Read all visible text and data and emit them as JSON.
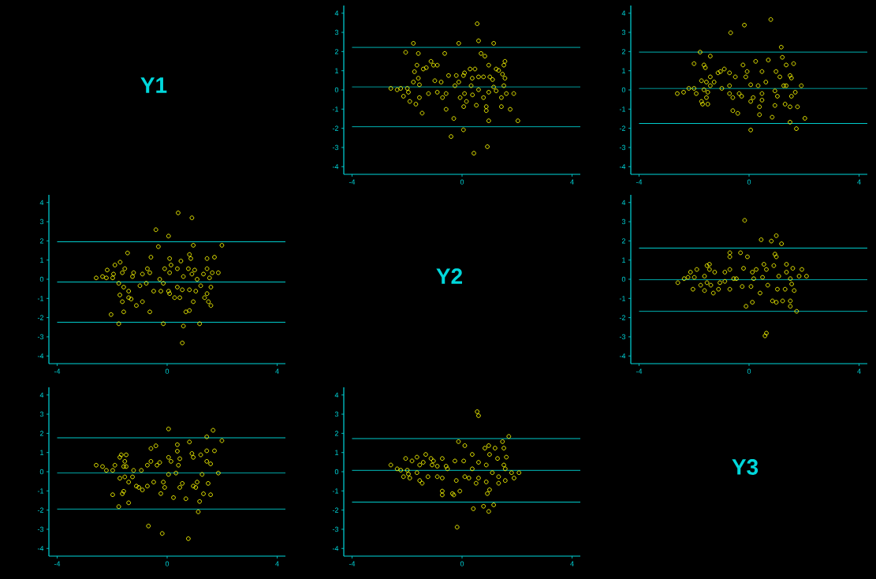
{
  "chart_data": [
    {
      "type": "other",
      "title": "Y1"
    },
    {
      "type": "scatter",
      "color": "#ffff00",
      "marker": "circle",
      "xlim": [
        -4.3,
        4.3
      ],
      "ylim": [
        -4.4,
        4.4
      ],
      "xticks": [
        -4,
        0,
        4
      ],
      "yticks": [
        -4,
        -3,
        -2,
        -1,
        0,
        1,
        2,
        3,
        4
      ],
      "ref_lines": [
        {
          "axis": "y",
          "value": 2.22,
          "color": "#00cccc"
        },
        {
          "axis": "y",
          "value": 0.16,
          "color": "#00cccc"
        },
        {
          "axis": "y",
          "value": -1.92,
          "color": "#00cccc"
        }
      ],
      "x": [
        -2.59,
        -2.36,
        -2.23,
        -1.99,
        -2.13,
        -1.95,
        -1.9,
        -2.05,
        -1.77,
        -1.73,
        -1.64,
        -1.59,
        -1.77,
        -1.59,
        -1.55,
        -1.68,
        -1.55,
        -1.45,
        -1.41,
        -1.3,
        -1.22,
        -1.13,
        -1.04,
        -0.9,
        -0.99,
        -0.76,
        -0.9,
        -0.71,
        -0.63,
        -0.58,
        -0.49,
        -0.58,
        -0.3,
        -0.4,
        -0.26,
        -0.21,
        -0.12,
        -0.12,
        -0.07,
        0.05,
        0.09,
        0.09,
        0.06,
        0.16,
        0.05,
        0.29,
        0.37,
        0.33,
        0.38,
        0.47,
        0.52,
        0.55,
        0.6,
        0.6,
        0.6,
        0.43,
        0.69,
        0.83,
        0.78,
        0.78,
        0.88,
        0.88,
        0.97,
        0.97,
        1.01,
        0.97,
        0.92,
        1.15,
        1.11,
        1.15,
        1.24,
        1.24,
        1.33,
        1.43,
        1.43,
        1.47,
        1.52,
        1.56,
        1.56,
        1.52,
        1.61,
        1.75,
        1.88,
        2.03
      ],
      "values": [
        0.08,
        0.01,
        0.08,
        0.08,
        -0.33,
        -0.12,
        -0.6,
        1.96,
        2.43,
        0.95,
        1.29,
        1.9,
        0.41,
        0.61,
        0.27,
        -0.74,
        -0.4,
        -1.21,
        1.09,
        1.16,
        -0.19,
        1.49,
        1.29,
        1.29,
        0.48,
        0.41,
        -0.12,
        -0.4,
        1.9,
        -0.19,
        0.75,
        -1.01,
        -1.49,
        -2.43,
        0.22,
        0.75,
        0.41,
        2.43,
        -0.4,
        0.75,
        0.89,
        -0.19,
        -0.87,
        -0.6,
        -2.08,
        1.09,
        0.61,
        0.22,
        -0.26,
        1.09,
        -0.8,
        3.45,
        2.56,
        0.68,
        0.01,
        -3.3,
        1.9,
        1.76,
        0.68,
        -0.4,
        -0.87,
        -1.08,
        1.29,
        -0.12,
        0.68,
        -1.61,
        -2.96,
        2.43,
        0.54,
        0.15,
        1.09,
        -0.05,
        1.02,
        -0.4,
        -0.87,
        0.82,
        1.29,
        1.49,
        0.61,
        0.22,
        -0.19,
        -1.01,
        -0.19,
        -1.61
      ]
    },
    {
      "type": "scatter",
      "color": "#ffff00",
      "marker": "circle",
      "xlim": [
        -4.3,
        4.3
      ],
      "ylim": [
        -4.4,
        4.4
      ],
      "xticks": [
        -4,
        0,
        4
      ],
      "yticks": [
        -4,
        -3,
        -2,
        -1,
        0,
        1,
        2,
        3,
        4
      ],
      "ref_lines": [
        {
          "axis": "y",
          "value": 1.97,
          "color": "#00cccc"
        },
        {
          "axis": "y",
          "value": 0.08,
          "color": "#00cccc"
        },
        {
          "axis": "y",
          "value": -1.75,
          "color": "#00cccc"
        }
      ],
      "x": [
        -2.61,
        -2.38,
        -2.19,
        -2.0,
        -1.92,
        -1.78,
        -2.0,
        -1.64,
        -1.59,
        -1.73,
        -1.55,
        -1.64,
        -1.5,
        -1.73,
        -1.69,
        -1.5,
        -1.55,
        -1.41,
        -1.41,
        -1.41,
        -1.27,
        -1.13,
        -1.04,
        -0.9,
        -0.99,
        -0.71,
        -0.71,
        -0.67,
        -0.71,
        -0.59,
        -0.59,
        -0.5,
        -0.41,
        -0.36,
        -0.27,
        -0.22,
        -0.17,
        -0.12,
        -0.07,
        0.06,
        0.06,
        0.06,
        0.15,
        0.24,
        0.33,
        0.38,
        0.38,
        0.47,
        0.47,
        0.47,
        0.61,
        0.7,
        0.79,
        0.84,
        0.94,
        0.98,
        1.03,
        0.94,
        1.12,
        1.17,
        1.21,
        1.26,
        1.31,
        1.35,
        1.35,
        1.49,
        1.54,
        1.54,
        1.49,
        1.49,
        1.62,
        1.68,
        1.72,
        1.76,
        1.9,
        2.03
      ],
      "values": [
        -0.19,
        -0.12,
        0.08,
        0.08,
        -0.19,
        1.97,
        1.37,
        1.3,
        1.16,
        0.48,
        0.41,
        0.01,
        -0.12,
        -0.6,
        -0.74,
        -0.74,
        -0.4,
        1.76,
        0.68,
        0.22,
        0.41,
        0.89,
        0.96,
        1.09,
        0.08,
        0.89,
        0.22,
        2.98,
        -0.19,
        -0.4,
        -1.08,
        0.68,
        -1.22,
        -0.19,
        -0.33,
        1.3,
        3.38,
        0.68,
        0.96,
        0.27,
        -0.6,
        -2.09,
        -0.4,
        1.49,
        0.22,
        -0.88,
        -1.29,
        0.96,
        -0.19,
        -0.53,
        0.41,
        1.56,
        3.67,
        -1.42,
        -0.05,
        0.96,
        -0.33,
        -0.81,
        0.68,
        2.23,
        1.7,
        0.22,
        -0.74,
        1.3,
        0.22,
        0.75,
        0.62,
        -0.33,
        -0.88,
        -1.68,
        1.37,
        -0.12,
        -2.02,
        -0.88,
        0.22,
        -1.48
      ]
    },
    {
      "type": "scatter",
      "color": "#ffff00",
      "marker": "circle",
      "xlim": [
        -4.3,
        4.3
      ],
      "ylim": [
        -4.4,
        4.4
      ],
      "xticks": [
        -4,
        0,
        4
      ],
      "yticks": [
        -4,
        -3,
        -2,
        -1,
        0,
        1,
        2,
        3,
        4
      ],
      "ref_lines": [
        {
          "axis": "y",
          "value": 1.95,
          "color": "#00cccc"
        },
        {
          "axis": "y",
          "value": -0.14,
          "color": "#00cccc"
        },
        {
          "axis": "y",
          "value": -2.24,
          "color": "#00cccc"
        }
      ],
      "x": [
        -2.58,
        -2.35,
        -2.18,
        -2.21,
        -1.98,
        -1.95,
        -1.9,
        -1.71,
        -1.54,
        -1.44,
        -1.63,
        -1.22,
        -1.26,
        -1.76,
        -1.58,
        -1.4,
        -1.72,
        -1.63,
        -1.4,
        -1.31,
        -1.12,
        -0.9,
        -1.58,
        -2.04,
        -1.76,
        -0.99,
        -0.9,
        -0.76,
        -0.72,
        -0.63,
        -0.59,
        -0.41,
        -0.32,
        -0.27,
        -0.49,
        -0.63,
        -0.23,
        -0.14,
        -0.09,
        0.05,
        0.09,
        0.14,
        0.09,
        0.05,
        0.09,
        -0.14,
        0.27,
        0.37,
        0.37,
        0.5,
        0.4,
        0.46,
        0.59,
        0.55,
        0.59,
        0.55,
        0.68,
        0.81,
        0.9,
        0.95,
        0.81,
        0.86,
        0.77,
        0.9,
        1.0,
        0.95,
        1.09,
        1.04,
        0.81,
        1.18,
        1.22,
        1.32,
        1.45,
        1.45,
        1.54,
        1.64,
        1.59,
        1.45,
        1.36,
        1.5,
        1.59,
        1.72,
        1.86,
        1.99
      ],
      "values": [
        0.07,
        0.14,
        0.48,
        0.07,
        0.07,
        0.27,
        0.74,
        0.89,
        0.55,
        1.37,
        0.34,
        0.34,
        0.14,
        -0.21,
        -0.41,
        -0.62,
        -0.82,
        -1.17,
        -0.96,
        -1.03,
        -1.37,
        -1.17,
        -1.7,
        -1.84,
        -2.32,
        -0.34,
        0.27,
        -0.21,
        0.55,
        0.34,
        1.15,
        2.58,
        1.7,
        0.0,
        -0.62,
        -1.7,
        -0.62,
        -0.21,
        0.55,
        2.25,
        1.08,
        0.74,
        0.34,
        -0.62,
        -0.75,
        -2.32,
        -0.96,
        0.55,
        -0.41,
        0.95,
        3.46,
        -0.96,
        0.14,
        -0.55,
        -2.44,
        -3.32,
        -1.7,
        -1.63,
        3.2,
        1.77,
        1.29,
        1.08,
        0.55,
        0.27,
        0.48,
        -1.17,
        0.0,
        -0.62,
        -0.55,
        -2.32,
        -0.34,
        0.27,
        1.08,
        0.55,
        0.07,
        0.34,
        -0.41,
        -0.75,
        -0.96,
        -1.17,
        -1.37,
        1.15,
        0.34,
        1.77
      ]
    },
    {
      "type": "other",
      "title": "Y2"
    },
    {
      "type": "scatter",
      "color": "#ffff00",
      "marker": "circle",
      "xlim": [
        -4.3,
        4.3
      ],
      "ylim": [
        -4.4,
        4.4
      ],
      "xticks": [
        -4,
        0,
        4
      ],
      "yticks": [
        -4,
        -3,
        -2,
        -1,
        0,
        1,
        2,
        3,
        4
      ],
      "ref_lines": [
        {
          "axis": "y",
          "value": 1.62,
          "color": "#00cccc"
        },
        {
          "axis": "y",
          "value": -0.03,
          "color": "#00cccc"
        },
        {
          "axis": "y",
          "value": -1.68,
          "color": "#00cccc"
        }
      ],
      "x": [
        -2.59,
        -2.36,
        -2.22,
        -2.13,
        -1.99,
        -1.9,
        -2.04,
        -1.76,
        -1.62,
        -1.62,
        -1.53,
        -1.44,
        -1.44,
        -1.39,
        -1.53,
        -1.3,
        -1.25,
        -1.11,
        -1.06,
        -0.88,
        -0.88,
        -0.7,
        -0.7,
        -0.7,
        -0.7,
        -0.56,
        -0.46,
        -0.31,
        -0.25,
        -0.2,
        -0.16,
        -0.11,
        -0.06,
        0.07,
        0.12,
        0.12,
        0.17,
        0.26,
        0.4,
        0.44,
        0.49,
        0.54,
        0.58,
        0.63,
        0.63,
        0.68,
        0.81,
        0.85,
        0.9,
        0.94,
        0.99,
        0.99,
        0.99,
        1.03,
        1.08,
        1.18,
        1.22,
        1.31,
        1.36,
        1.36,
        1.5,
        1.5,
        1.5,
        1.55,
        1.59,
        1.64,
        1.73,
        1.82,
        1.92,
        2.09
      ],
      "values": [
        -0.18,
        0.03,
        0.1,
        0.37,
        0.1,
        0.51,
        -0.52,
        -0.31,
        0.16,
        -0.59,
        0.71,
        0.78,
        0.51,
        -0.31,
        -0.18,
        -0.72,
        0.37,
        -0.52,
        -0.18,
        -0.11,
        0.37,
        1.38,
        1.17,
        0.51,
        -0.52,
        0.03,
        0.03,
        1.38,
        -0.38,
        0.57,
        3.07,
        -1.41,
        1.17,
        -0.38,
        -1.2,
        0.37,
        0.03,
        0.51,
        -0.72,
        2.06,
        0.1,
        0.78,
        -2.95,
        -2.81,
        0.51,
        -0.31,
        1.99,
        -1.13,
        0.71,
        1.31,
        2.27,
        1.17,
        -1.2,
        -0.52,
        0.16,
        1.85,
        -1.13,
        -0.52,
        0.78,
        0.37,
        0.03,
        -1.13,
        -1.41,
        -0.25,
        0.57,
        -0.59,
        -1.67,
        0.16,
        0.51,
        0.16
      ]
    },
    {
      "type": "scatter",
      "color": "#ffff00",
      "marker": "circle",
      "xlim": [
        -4.3,
        4.3
      ],
      "ylim": [
        -4.4,
        4.4
      ],
      "xticks": [
        -4,
        0,
        4
      ],
      "yticks": [
        -4,
        -3,
        -2,
        -1,
        0,
        1,
        2,
        3,
        4
      ],
      "ref_lines": [
        {
          "axis": "y",
          "value": 1.77,
          "color": "#00cccc"
        },
        {
          "axis": "y",
          "value": -0.07,
          "color": "#00cccc"
        },
        {
          "axis": "y",
          "value": -1.94,
          "color": "#00cccc"
        }
      ],
      "x": [
        -2.58,
        -2.35,
        -2.21,
        -1.98,
        -1.9,
        -1.72,
        -1.67,
        -1.49,
        -1.54,
        -1.58,
        -1.49,
        -1.72,
        -1.54,
        -1.4,
        -1.58,
        -1.63,
        -1.98,
        -1.76,
        -1.4,
        -1.26,
        -1.22,
        -1.12,
        -1.03,
        -0.9,
        -0.94,
        -0.72,
        -0.72,
        -0.59,
        -0.59,
        -0.41,
        -0.37,
        -0.27,
        -0.49,
        -0.68,
        -0.23,
        -0.14,
        -0.09,
        -0.18,
        0.05,
        0.05,
        0.14,
        0.05,
        0.23,
        0.37,
        0.37,
        0.46,
        0.41,
        0.32,
        0.55,
        0.46,
        0.68,
        0.77,
        0.81,
        0.9,
        0.95,
        0.95,
        1.04,
        1.09,
        1.13,
        1.18,
        1.22,
        1.27,
        1.32,
        1.44,
        1.44,
        1.44,
        1.49,
        1.58,
        1.58,
        1.67,
        1.72,
        1.86,
        1.99
      ],
      "values": [
        0.34,
        0.27,
        0.07,
        0.07,
        0.34,
        0.75,
        0.88,
        0.88,
        0.54,
        0.27,
        0.27,
        -0.34,
        -0.27,
        -0.54,
        -1.02,
        -1.15,
        -1.2,
        -1.82,
        -1.62,
        -0.27,
        0.07,
        -0.75,
        -0.82,
        -0.95,
        0.07,
        0.34,
        -0.75,
        1.21,
        0.54,
        1.35,
        0.34,
        0.48,
        -0.54,
        -2.83,
        -1.14,
        -0.54,
        -0.82,
        -3.22,
        2.23,
        0.75,
        0.54,
        -0.14,
        -1.35,
        1.41,
        1.07,
        0.68,
        0.34,
        -0.07,
        -0.61,
        -0.82,
        -1.41,
        -3.49,
        1.55,
        0.95,
        0.75,
        -0.75,
        -0.82,
        -0.54,
        -2.09,
        -1.55,
        0.88,
        -0.14,
        -1.15,
        1.82,
        1.09,
        0.54,
        -0.61,
        0.41,
        -1.2,
        2.16,
        1.09,
        -0.07,
        1.62
      ]
    },
    {
      "type": "scatter",
      "color": "#ffff00",
      "marker": "circle",
      "xlim": [
        -4.3,
        4.3
      ],
      "ylim": [
        -4.4,
        4.4
      ],
      "xticks": [
        -4,
        0,
        4
      ],
      "yticks": [
        -4,
        -3,
        -2,
        -1,
        0,
        1,
        2,
        3,
        4
      ],
      "ref_lines": [
        {
          "axis": "y",
          "value": 1.73,
          "color": "#00cccc"
        },
        {
          "axis": "y",
          "value": 0.07,
          "color": "#00cccc"
        },
        {
          "axis": "y",
          "value": -1.58,
          "color": "#00cccc"
        }
      ],
      "x": [
        -2.59,
        -2.36,
        -2.23,
        -1.99,
        -1.95,
        -2.13,
        -1.9,
        -2.05,
        -1.82,
        -1.64,
        -1.64,
        -1.54,
        -1.54,
        -1.45,
        -1.41,
        -1.32,
        -1.24,
        -1.13,
        -1.04,
        -1.09,
        -0.9,
        -0.9,
        -0.72,
        -0.72,
        -0.72,
        -0.72,
        -0.58,
        -0.53,
        -0.35,
        -0.3,
        -0.26,
        -0.21,
        -0.18,
        -0.13,
        -0.08,
        0.06,
        0.1,
        0.1,
        0.25,
        0.37,
        0.37,
        0.41,
        0.51,
        0.55,
        0.6,
        0.6,
        0.6,
        0.78,
        0.83,
        0.88,
        0.88,
        0.92,
        0.97,
        0.97,
        1.0,
        1.0,
        1.1,
        1.15,
        1.2,
        1.29,
        1.33,
        1.33,
        1.47,
        1.52,
        1.52,
        1.57,
        1.61,
        1.57,
        1.7,
        1.8,
        1.89,
        2.07
      ],
      "values": [
        0.35,
        0.15,
        0.08,
        0.08,
        -0.12,
        -0.26,
        -0.33,
        0.69,
        0.56,
        0.76,
        -0.05,
        0.35,
        -0.46,
        -0.6,
        0.49,
        0.9,
        -0.26,
        0.69,
        0.56,
        0.35,
        0.29,
        -0.26,
        0.69,
        -0.33,
        -1.01,
        -1.21,
        0.29,
        0.15,
        -1.14,
        -1.21,
        0.56,
        -0.46,
        -2.89,
        1.57,
        -1.01,
        0.56,
        1.36,
        -0.26,
        -0.33,
        0.9,
        0.15,
        -1.93,
        -0.6,
        3.13,
        2.92,
        0.49,
        -0.33,
        -1.8,
        1.23,
        0.35,
        -0.53,
        -1.14,
        1.36,
        -2.07,
        -0.94,
        0.9,
        -0.05,
        -1.73,
        1.23,
        0.69,
        -0.6,
        -0.26,
        1.57,
        1.23,
        0.35,
        -0.46,
        0.76,
        0.15,
        1.84,
        -0.05,
        -0.33,
        -0.05
      ]
    },
    {
      "type": "other",
      "title": "Y3"
    }
  ]
}
